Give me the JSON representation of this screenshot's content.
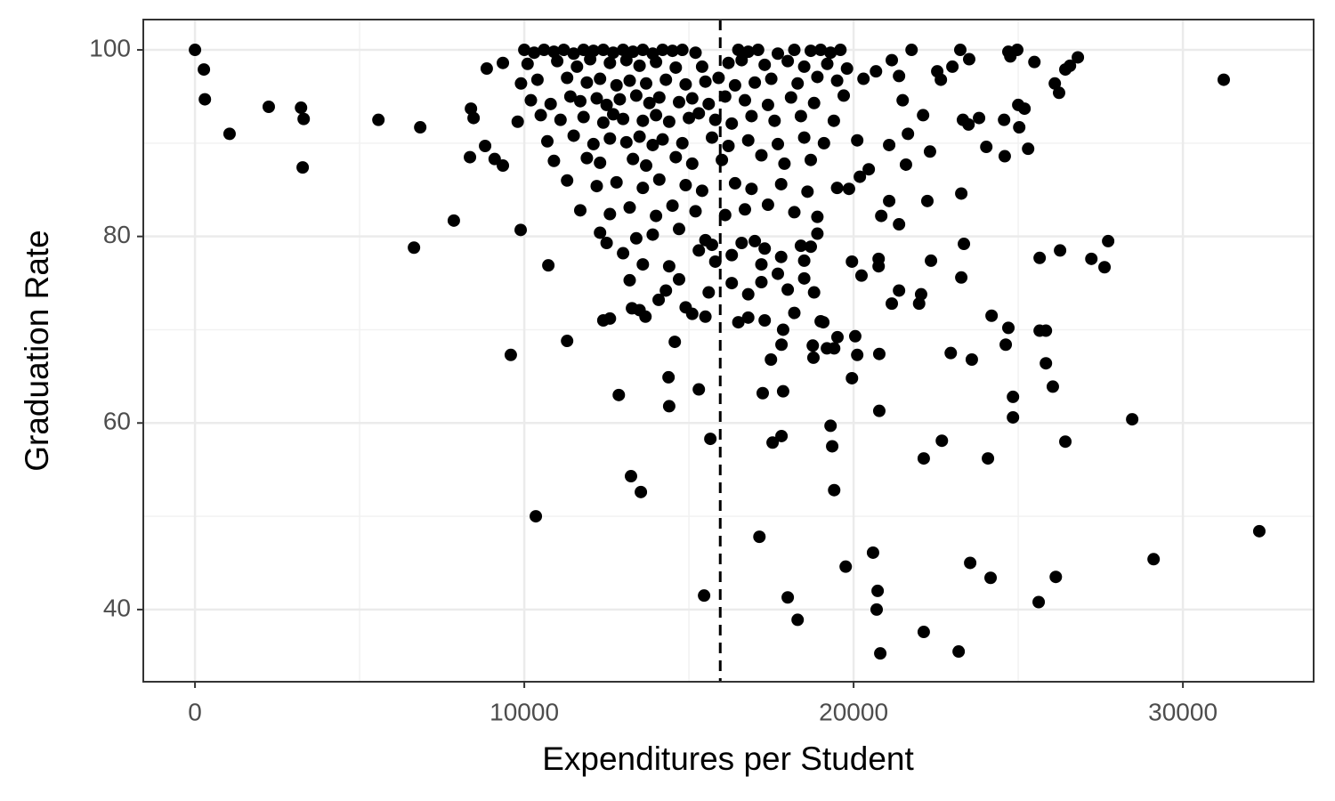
{
  "chart_data": {
    "type": "scatter",
    "x_label": "Expenditures per Student",
    "y_label": "Graduation Rate",
    "xlim": [
      -1570,
      33970
    ],
    "ylim": [
      32.26,
      103.25
    ],
    "xticks": [
      0,
      10000,
      20000,
      30000
    ],
    "yticks": [
      40,
      60,
      80,
      100
    ],
    "grid": true,
    "color": "#000000",
    "vline": 15950,
    "x": [
      0,
      270,
      300,
      1050,
      2240,
      3220,
      3300,
      3270,
      5570,
      6840,
      7860,
      6650,
      8380,
      8460,
      8350,
      8810,
      8860,
      9100,
      9350,
      9350,
      9890,
      9590,
      10350,
      10730,
      11300,
      12870,
      13240,
      13540,
      12400,
      13270,
      13680,
      14380,
      14400,
      14570,
      14080,
      15300,
      15650,
      15460,
      17140,
      17240,
      17860,
      17490,
      17540,
      17810,
      18000,
      18300,
      19760,
      20590,
      20730,
      20700,
      20810,
      20780,
      20780,
      19350,
      19300,
      19410,
      19950,
      20110,
      20050,
      19510,
      19410,
      19190,
      18780,
      18760,
      19080,
      17860,
      17810,
      22130,
      22130,
      22680,
      22950,
      23190,
      23540,
      23590,
      24080,
      24160,
      24190,
      24620,
      24700,
      24840,
      24840,
      25620,
      25650,
      25840,
      25840,
      26050,
      26140,
      26430,
      25650,
      26270,
      27220,
      27620,
      27730,
      28460,
      29110,
      31240,
      32320,
      23270,
      23350,
      23270,
      22050,
      21990,
      21160,
      21380,
      22350,
      22240,
      22320,
      22110,
      21590,
      21650,
      21490,
      21380,
      20760,
      20760,
      20840,
      21080,
      21380,
      20240,
      19950,
      19860,
      20190,
      20460,
      21080,
      20110,
      24030,
      24590,
      25300,
      25030,
      25190,
      25000,
      24570,
      23810,
      23490,
      23320,
      25490,
      24700,
      24970,
      24760,
      26110,
      26240,
      26430,
      26570,
      26810,
      23240,
      23510,
      23000,
      22650,
      22540,
      21760,
      21160,
      20680,
      10000,
      10300,
      10600,
      10900,
      11200,
      11500,
      11800,
      12100,
      12400,
      12700,
      13000,
      13300,
      13600,
      13900,
      14200,
      14500,
      14800,
      15200,
      16500,
      16800,
      17100,
      17700,
      18200,
      18700,
      19000,
      19300,
      19600,
      10100,
      11000,
      11600,
      12000,
      12600,
      13100,
      13500,
      14000,
      14600,
      15400,
      16200,
      16600,
      17300,
      18000,
      18500,
      19200,
      19800,
      9900,
      10400,
      11300,
      11900,
      12300,
      12800,
      13200,
      13700,
      14300,
      14900,
      15500,
      15900,
      16400,
      17000,
      17500,
      18300,
      18900,
      19500,
      20300,
      10200,
      10800,
      11400,
      11700,
      12200,
      12500,
      12900,
      13400,
      13800,
      14100,
      14700,
      15100,
      15600,
      16100,
      16700,
      17400,
      18100,
      18800,
      19700,
      9800,
      10500,
      11100,
      11800,
      12400,
      12700,
      13000,
      13600,
      14000,
      14400,
      15000,
      15300,
      15800,
      16300,
      16900,
      17600,
      18400,
      19400,
      10700,
      11500,
      12100,
      12600,
      13100,
      13500,
      13900,
      14200,
      14800,
      15700,
      16200,
      16800,
      17700,
      18500,
      19100,
      10900,
      11900,
      12300,
      13300,
      13700,
      14600,
      15100,
      16000,
      17200,
      17900,
      18700,
      11300,
      12200,
      12800,
      13600,
      14100,
      14900,
      15400,
      16400,
      16900,
      17800,
      18600,
      19500,
      11700,
      12600,
      13200,
      14000,
      14500,
      15200,
      16100,
      16700,
      17400,
      18200,
      18900,
      12300,
      12500,
      13400,
      13900,
      14700,
      15500,
      15700,
      16600,
      17000,
      17300,
      18400,
      18900,
      13000,
      13600,
      14400,
      15300,
      15800,
      16300,
      17200,
      17800,
      18500,
      18700,
      13200,
      14300,
      14700,
      15600,
      16800,
      17200,
      17700,
      18000,
      18500,
      18800,
      16300,
      12600,
      13500,
      14900,
      15100,
      15500,
      16500,
      16800,
      17300,
      18200,
      19000
    ],
    "values": [
      100,
      97.9,
      94.7,
      91,
      93.9,
      93.8,
      92.6,
      87.4,
      92.5,
      91.7,
      81.7,
      78.8,
      93.7,
      92.7,
      88.5,
      89.7,
      98,
      88.3,
      87.6,
      98.6,
      80.7,
      67.3,
      50,
      76.9,
      68.8,
      63,
      54.3,
      52.6,
      71,
      72.3,
      71.4,
      64.9,
      61.8,
      68.7,
      73.2,
      63.6,
      58.3,
      41.5,
      47.8,
      63.2,
      63.4,
      66.8,
      57.9,
      58.6,
      41.3,
      38.9,
      44.6,
      46.1,
      42,
      40,
      35.3,
      61.3,
      67.4,
      57.5,
      59.7,
      52.8,
      64.8,
      67.3,
      69.3,
      69.2,
      68,
      68,
      67,
      68.3,
      70.8,
      70,
      68.4,
      56.2,
      37.6,
      58.1,
      67.5,
      35.5,
      45,
      66.8,
      56.2,
      43.4,
      71.5,
      68.4,
      70.2,
      62.8,
      60.6,
      40.8,
      69.9,
      69.9,
      66.4,
      63.9,
      43.5,
      58,
      77.7,
      78.5,
      77.6,
      76.7,
      79.5,
      60.4,
      45.4,
      96.8,
      48.4,
      75.6,
      79.2,
      84.6,
      73.8,
      72.8,
      72.8,
      74.2,
      77.4,
      83.8,
      89.1,
      93,
      87.7,
      91,
      94.6,
      97.2,
      77.6,
      76.8,
      82.2,
      83.8,
      81.3,
      75.8,
      77.3,
      85.1,
      86.4,
      87.2,
      89.8,
      90.3,
      89.6,
      88.6,
      89.4,
      91.7,
      93.7,
      94.1,
      92.5,
      92.7,
      92,
      92.5,
      98.7,
      99.8,
      100,
      99.3,
      96.4,
      95.4,
      97.9,
      98.3,
      99.2,
      100,
      99,
      98.2,
      96.8,
      97.7,
      100,
      98.9,
      97.7,
      100,
      99.7,
      100,
      99.8,
      100,
      99.6,
      100,
      99.9,
      100,
      99.7,
      100,
      99.8,
      100,
      99.6,
      100,
      99.9,
      100,
      99.7,
      100,
      99.8,
      100,
      99.6,
      100,
      99.9,
      100,
      99.7,
      100,
      98.5,
      98.8,
      98.2,
      99,
      98.6,
      98.9,
      98.3,
      98.7,
      98.1,
      98.2,
      98.6,
      98.9,
      98.4,
      98.8,
      98.2,
      98.5,
      98,
      96.4,
      96.8,
      97,
      96.5,
      96.9,
      96.2,
      96.7,
      96.4,
      96.8,
      96.3,
      96.6,
      97,
      96.2,
      96.5,
      96.9,
      96.4,
      97.1,
      96.7,
      96.9,
      94.6,
      94.2,
      95,
      94.5,
      94.8,
      94.1,
      94.7,
      95.1,
      94.3,
      94.9,
      94.4,
      94.8,
      94.2,
      95,
      94.6,
      94.1,
      94.9,
      94.3,
      95.1,
      92.3,
      93,
      92.5,
      92.8,
      92.2,
      93.1,
      92.6,
      92.4,
      93,
      92.3,
      92.7,
      93.2,
      92.5,
      92.1,
      92.9,
      92.4,
      92.9,
      92.4,
      90.2,
      90.8,
      89.9,
      90.5,
      90.1,
      90.7,
      89.8,
      90.4,
      90,
      90.6,
      89.7,
      90.3,
      89.9,
      90.6,
      90,
      88.1,
      88.4,
      87.9,
      88.3,
      87.6,
      88.5,
      87.8,
      88.2,
      88.7,
      87.8,
      88.2,
      86,
      85.4,
      85.8,
      85.2,
      86.1,
      85.5,
      84.9,
      85.7,
      85.1,
      85.6,
      84.8,
      85.2,
      82.8,
      82.4,
      83.1,
      82.2,
      83.3,
      82.7,
      82.3,
      82.9,
      83.4,
      82.6,
      82.1,
      80.4,
      79.3,
      79.8,
      80.2,
      80.8,
      79.6,
      79.1,
      79.3,
      79.5,
      78.7,
      79,
      80.3,
      78.2,
      77,
      76.8,
      78.5,
      77.3,
      78,
      77,
      77.8,
      77.4,
      78.9,
      75.3,
      74.2,
      75.4,
      74,
      73.8,
      75.1,
      76,
      74.3,
      75.5,
      74,
      75,
      71.2,
      72.1,
      72.4,
      71.7,
      71.4,
      70.8,
      71.3,
      71,
      71.8,
      70.9
    ]
  }
}
